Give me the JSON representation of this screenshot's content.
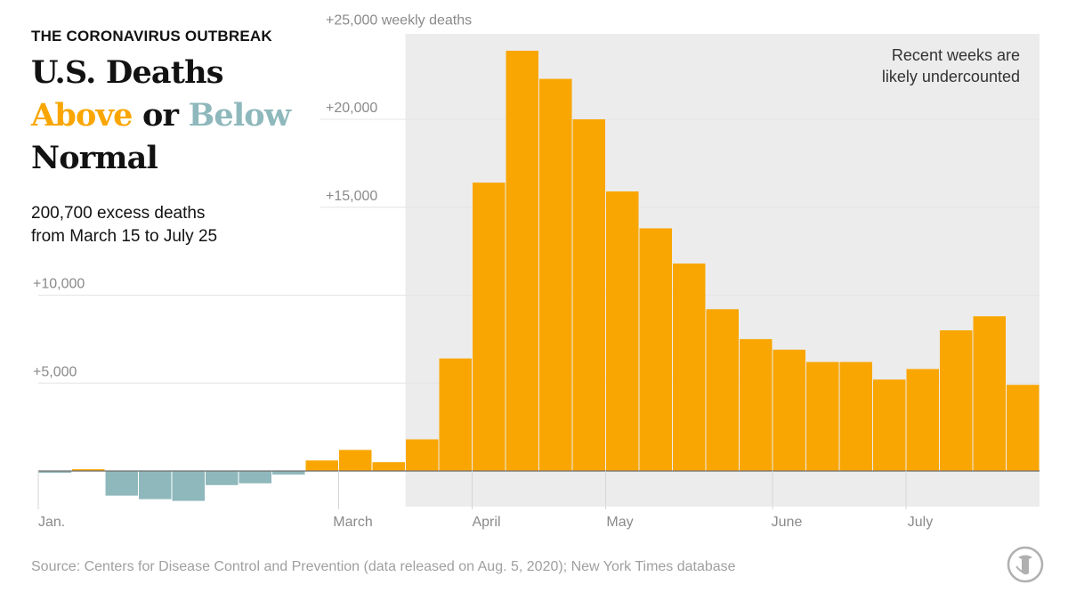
{
  "header": {
    "kicker": "THE CORONAVIRUS OUTBREAK",
    "title_line1": "U.S. Deaths",
    "title_above": "Above",
    "title_or": "or",
    "title_below": "Below",
    "title_line3": "Normal",
    "subtitle_line1": "200,700 excess deaths",
    "subtitle_line2": "from March 15 to July 25"
  },
  "source": "Source: Centers for Disease Control and Prevention (data released on Aug. 5, 2020); New York Times database",
  "colors": {
    "above": "#f9a602",
    "below": "#8fb8bc",
    "shade": "#ececec",
    "grid": "#e4e4e4",
    "axis_text": "#8a8a8a"
  },
  "chart_data": {
    "type": "bar",
    "title": "U.S. Deaths Above or Below Normal",
    "ylabel": "weekly deaths",
    "ylim": [
      -1800,
      25000
    ],
    "y_ticks": [
      {
        "value": 25000,
        "label": "+25,000 weekly deaths"
      },
      {
        "value": 20000,
        "label": "+20,000"
      },
      {
        "value": 15000,
        "label": "+15,000"
      },
      {
        "value": 10000,
        "label": "+10,000"
      },
      {
        "value": 5000,
        "label": "+5,000"
      }
    ],
    "x_ticks": [
      {
        "week": 0,
        "label": "Jan."
      },
      {
        "week": 9,
        "label": "March"
      },
      {
        "week": 13,
        "label": "April"
      },
      {
        "week": 17,
        "label": "May"
      },
      {
        "week": 22,
        "label": "June"
      },
      {
        "week": 26,
        "label": "July"
      }
    ],
    "weeks": 30,
    "shaded_from_week": 11,
    "annotation_line1": "Recent weeks are",
    "annotation_line2": "likely undercounted",
    "values": [
      -100,
      100,
      -1400,
      -1600,
      -1700,
      -800,
      -700,
      -200,
      600,
      1200,
      500,
      1800,
      6400,
      16400,
      23900,
      22300,
      20000,
      15900,
      13800,
      11800,
      9200,
      7500,
      6900,
      6200,
      6200,
      5200,
      5800,
      8000,
      8800,
      4900
    ]
  }
}
